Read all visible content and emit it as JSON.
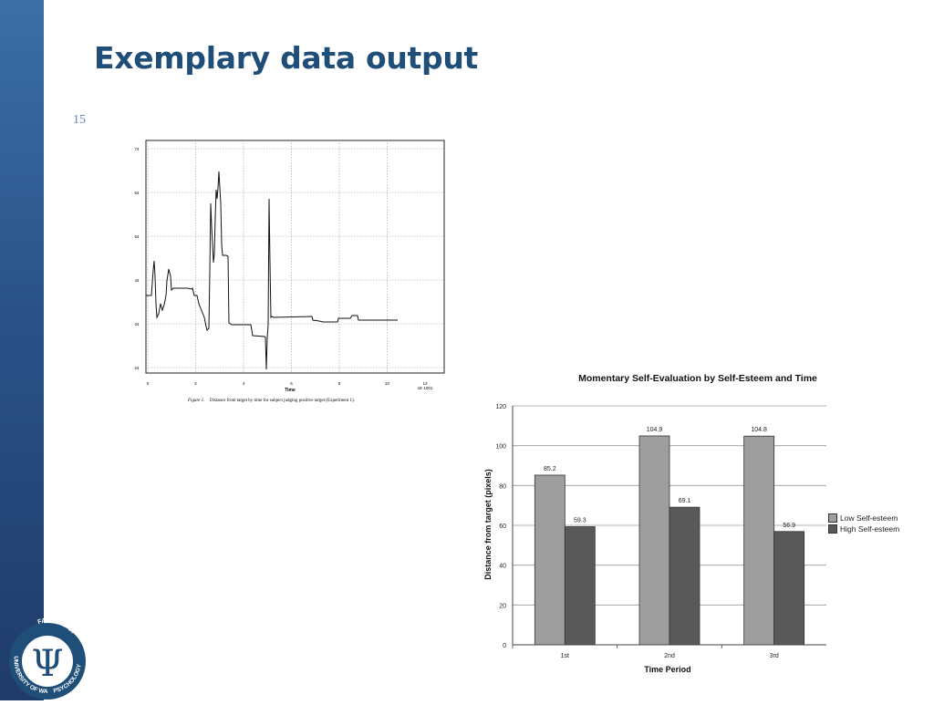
{
  "slide": {
    "title": "Exemplary data output",
    "number": "15"
  },
  "logo": {
    "text_top": "FACULTY OF",
    "text_left": "UNIVERSITY OF WARSAW",
    "text_right": "PSYCHOLOGY",
    "symbol": "Ψ",
    "colors": {
      "ring": "#1f4e79",
      "fill": "#ffffff"
    }
  },
  "figure1": {
    "caption_label": "Figure 1.",
    "caption_text": "Distance from target by time for subject judging positive target (Experiment 1).",
    "x_axis_label": "Time",
    "y_ticks": [
      "74",
      "64",
      "54",
      "44",
      "34",
      "24"
    ],
    "x_ticks": [
      "0",
      "2",
      "4",
      "6",
      "8",
      "10"
    ],
    "x_ticks_last": [
      "12",
      "1E 1001"
    ],
    "line_color": "#111111"
  },
  "chart_data": {
    "type": "bar",
    "title": "Momentary Self-Evaluation by Self-Esteem and Time",
    "xlabel": "Time Period",
    "ylabel": "Distance from target (pixels)",
    "categories": [
      "1st",
      "2nd",
      "3rd"
    ],
    "ylim": [
      0,
      120
    ],
    "yticks": [
      0,
      20,
      40,
      60,
      80,
      100,
      120
    ],
    "grid": true,
    "legend_position": "right",
    "series": [
      {
        "name": "Low Self-esteem",
        "values": [
          85.2,
          104.9,
          104.8
        ],
        "labels": [
          "85.2",
          "104.9",
          "104.8"
        ],
        "color": "#9e9e9e"
      },
      {
        "name": "High Self-esteem",
        "values": [
          59.3,
          69.1,
          56.9
        ],
        "labels": [
          "59.3",
          "69.1",
          "56.9"
        ],
        "color": "#595959"
      }
    ]
  }
}
